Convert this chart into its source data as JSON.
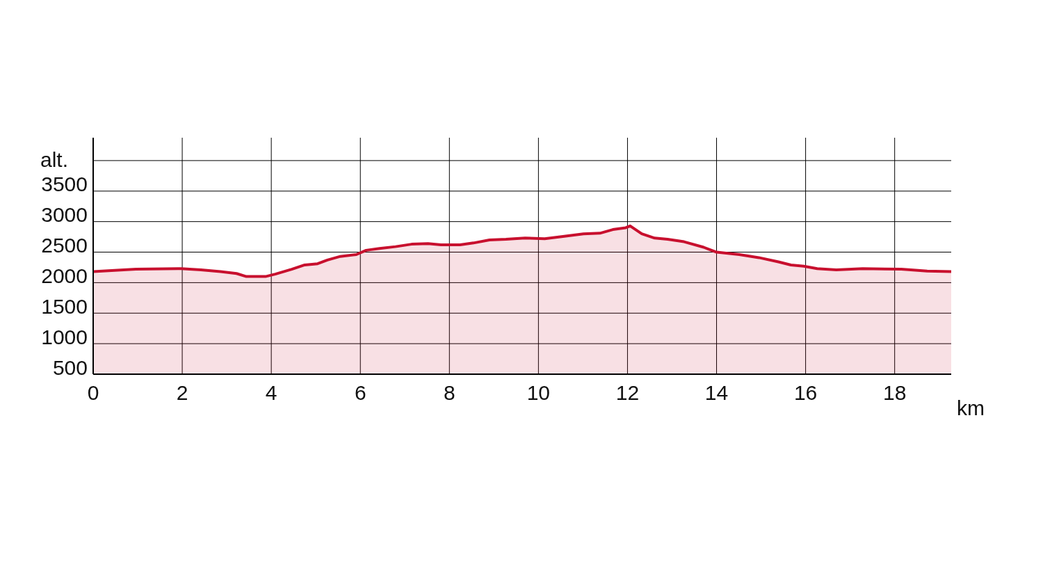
{
  "chart_data": {
    "type": "area",
    "xlabel": "km",
    "ylabel": "alt.",
    "x": [
      0,
      0.96,
      1.98,
      2.42,
      2.86,
      3.22,
      3.44,
      3.87,
      4.09,
      4.46,
      4.75,
      5.04,
      5.26,
      5.55,
      5.91,
      6.13,
      6.43,
      6.79,
      7.15,
      7.52,
      7.81,
      8.24,
      8.54,
      8.9,
      9.27,
      9.7,
      10.14,
      10.58,
      11.01,
      11.38,
      11.67,
      11.96,
      12.06,
      12.32,
      12.61,
      12.9,
      13.27,
      13.71,
      14.0,
      14.51,
      14.95,
      15.39,
      15.67,
      15.96,
      16.26,
      16.69,
      17.28,
      18.15,
      18.73,
      19.27
    ],
    "series": [
      {
        "color": "#c8102e",
        "values": [
          2180,
          2220,
          2230,
          2210,
          2180,
          2150,
          2100,
          2100,
          2140,
          2220,
          2290,
          2310,
          2370,
          2430,
          2460,
          2530,
          2560,
          2590,
          2630,
          2640,
          2620,
          2620,
          2650,
          2700,
          2710,
          2730,
          2720,
          2760,
          2800,
          2810,
          2870,
          2900,
          2930,
          2800,
          2730,
          2710,
          2670,
          2580,
          2500,
          2460,
          2410,
          2340,
          2290,
          2270,
          2230,
          2210,
          2230,
          2220,
          2190,
          2180
        ]
      }
    ],
    "xlim": [
      0,
      19.27
    ],
    "xticks": [
      0,
      2,
      4,
      6,
      8,
      10,
      12,
      14,
      16,
      18
    ],
    "ylim": [
      500,
      4375
    ],
    "yticks": [
      500,
      1000,
      1500,
      2000,
      2500,
      3000,
      3500,
      {
        "value": 4000,
        "label": null
      }
    ],
    "grid": true,
    "marker": "none",
    "line_style": "solid"
  }
}
